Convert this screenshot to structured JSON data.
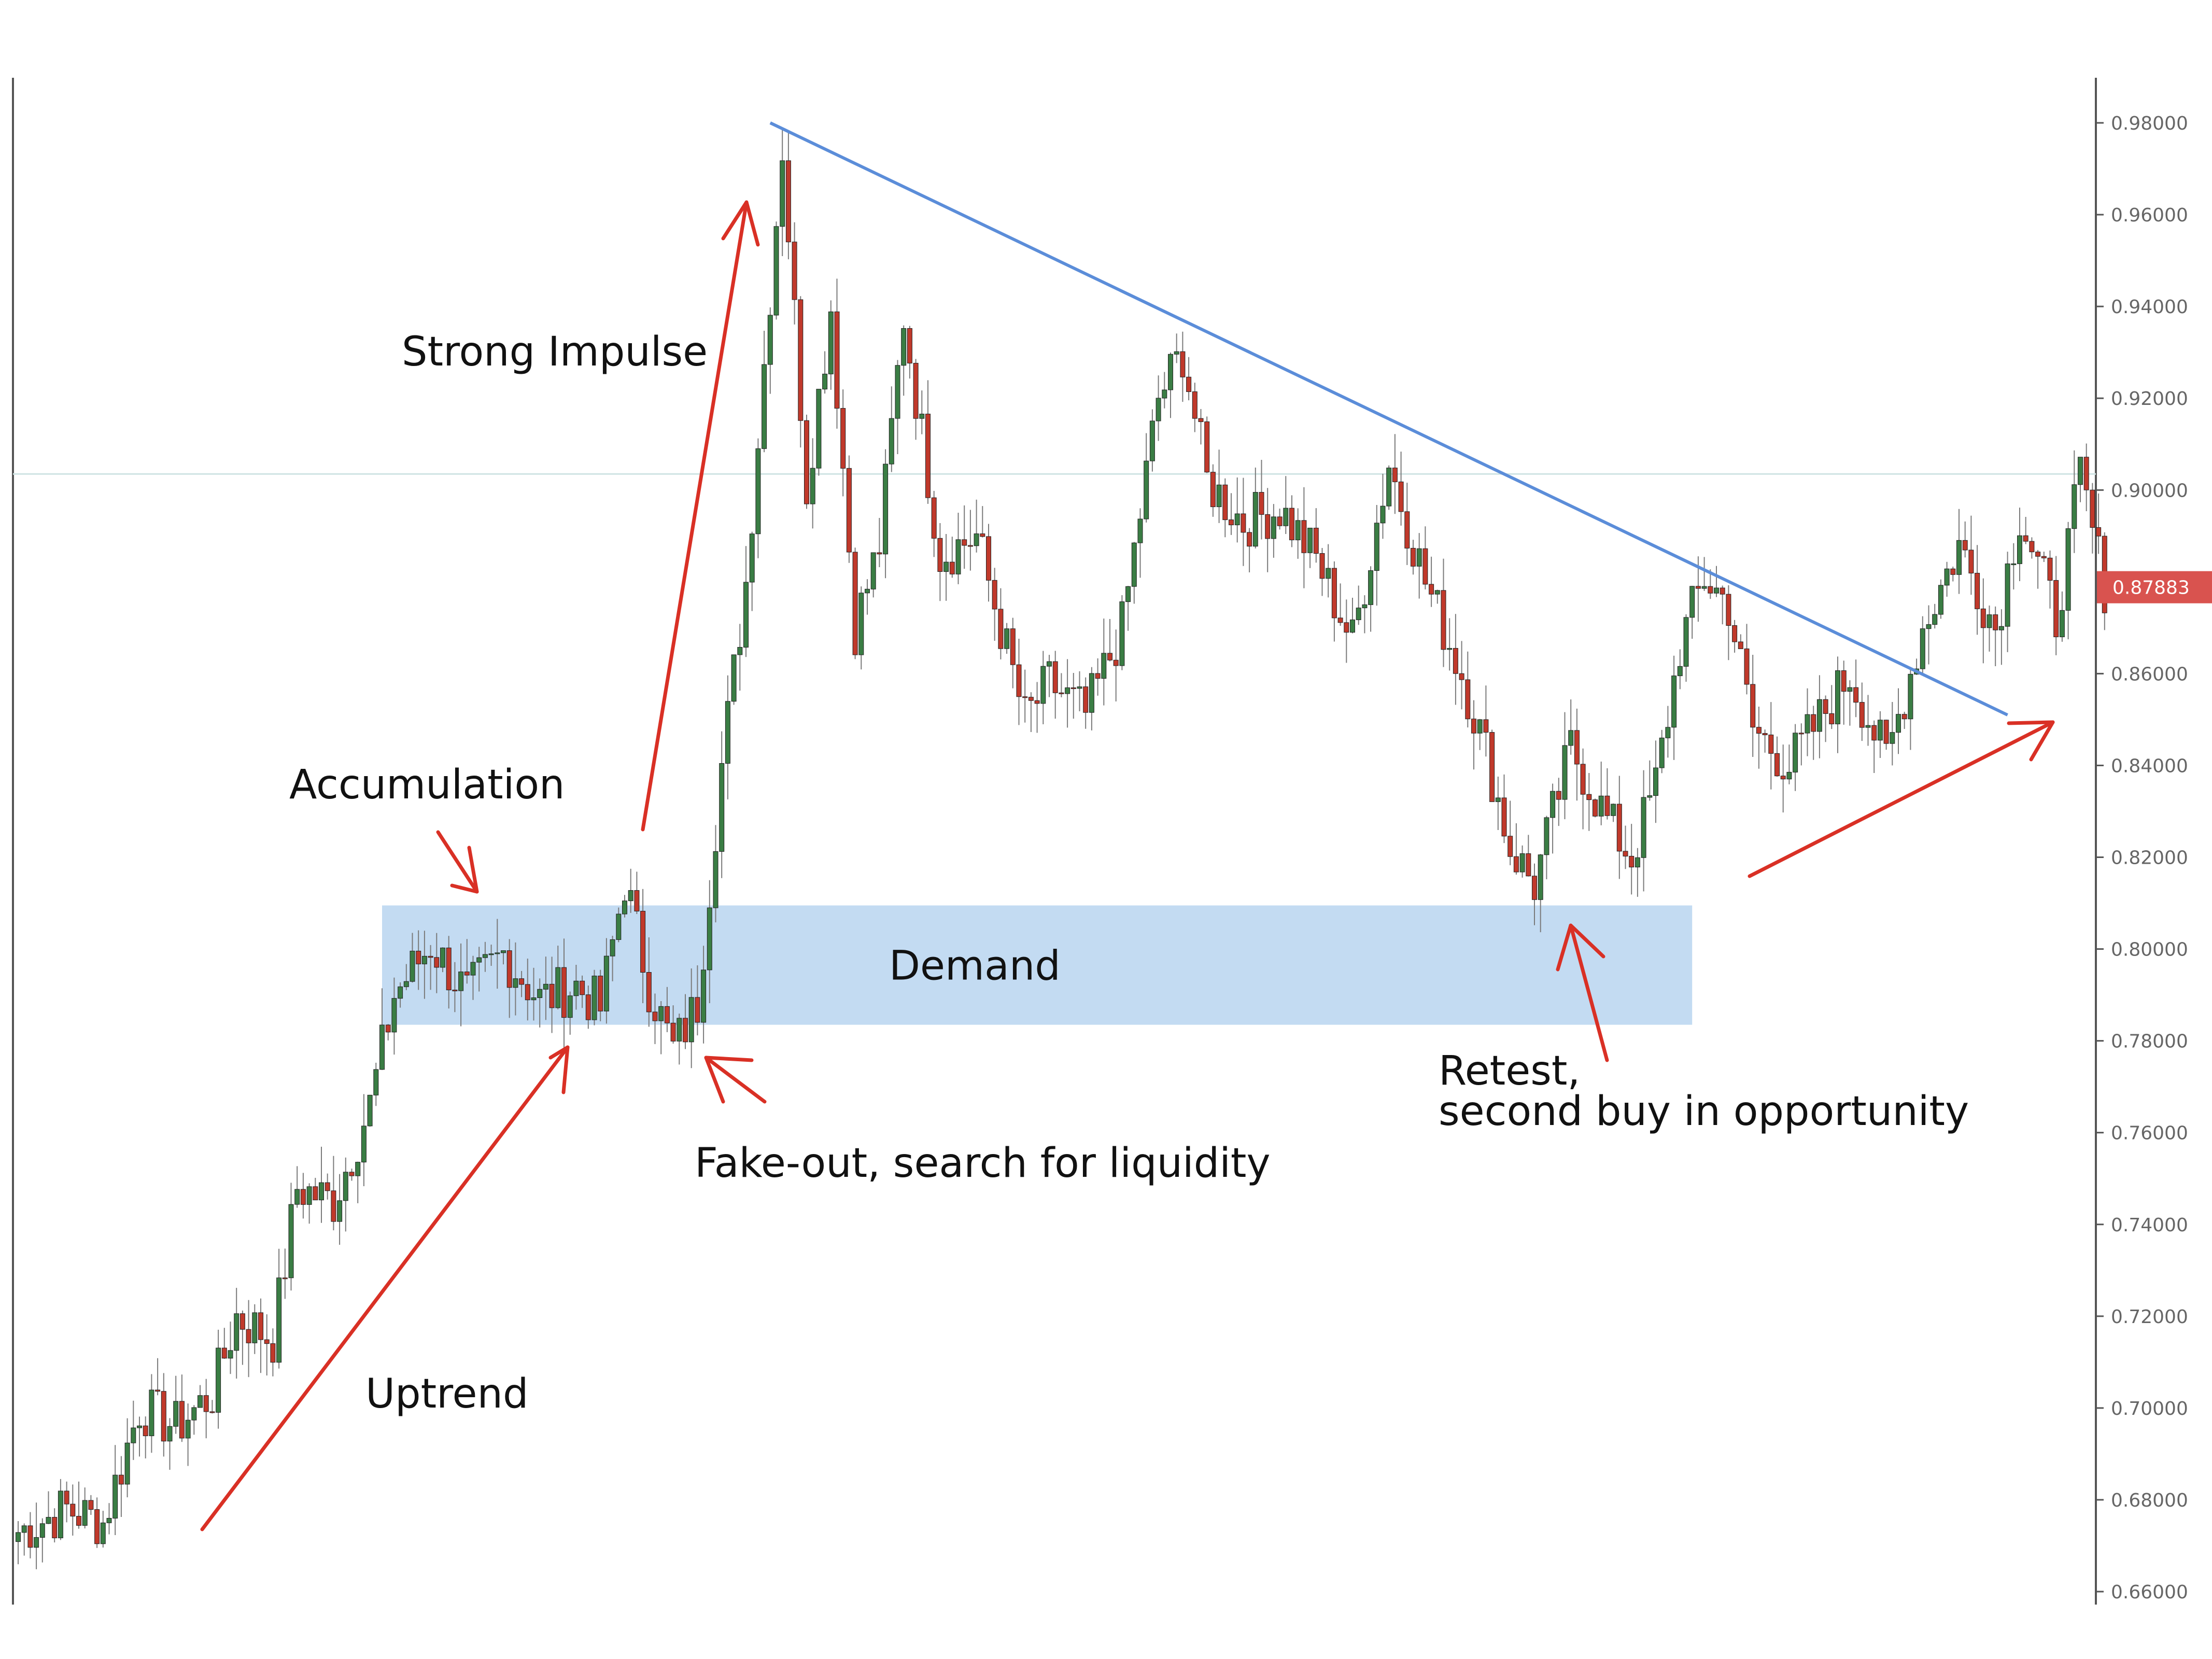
{
  "colors": {
    "bull": "#3a7d44",
    "bear": "#c0392b",
    "wick": "#7a7a7a",
    "trendline": "#5b8dd9",
    "arrow": "#d93025",
    "demand_zone": "#b9d5f0",
    "price_tag": "#d9534f",
    "axis": "#555555",
    "hline": "#cfe3e3"
  },
  "chart_data": {
    "type": "candlestick",
    "ylim": [
      0.655,
      0.99
    ],
    "y_ticks": [
      "0.98000",
      "0.96000",
      "0.94000",
      "0.92000",
      "0.90000",
      "0.88000",
      "0.86000",
      "0.84000",
      "0.82000",
      "0.80000",
      "0.78000",
      "0.76000",
      "0.74000",
      "0.72000",
      "0.70000",
      "0.68000",
      "0.66000"
    ],
    "current_price": "0.87883",
    "current_price_value": 0.87883,
    "reference_level": 0.9035,
    "demand_zone": {
      "label": "Demand",
      "low": 0.7835,
      "high": 0.8095,
      "start_bar": 60,
      "end_bar": 276
    },
    "trendline": {
      "start": {
        "bar": 124,
        "price": 0.98
      },
      "end": {
        "bar": 328,
        "price": 0.851
      }
    },
    "price_path": [
      [
        0,
        0.673
      ],
      [
        8,
        0.678
      ],
      [
        14,
        0.675
      ],
      [
        20,
        0.7
      ],
      [
        26,
        0.696
      ],
      [
        32,
        0.703
      ],
      [
        36,
        0.72
      ],
      [
        42,
        0.715
      ],
      [
        46,
        0.748
      ],
      [
        52,
        0.745
      ],
      [
        58,
        0.766
      ],
      [
        62,
        0.79
      ],
      [
        68,
        0.801
      ],
      [
        74,
        0.79
      ],
      [
        80,
        0.799
      ],
      [
        86,
        0.789
      ],
      [
        92,
        0.792
      ],
      [
        96,
        0.787
      ],
      [
        100,
        0.815
      ],
      [
        104,
        0.792
      ],
      [
        108,
        0.778
      ],
      [
        112,
        0.788
      ],
      [
        116,
        0.84
      ],
      [
        120,
        0.88
      ],
      [
        126,
        0.975
      ],
      [
        130,
        0.901
      ],
      [
        134,
        0.94
      ],
      [
        138,
        0.87
      ],
      [
        142,
        0.888
      ],
      [
        146,
        0.938
      ],
      [
        152,
        0.886
      ],
      [
        158,
        0.89
      ],
      [
        162,
        0.87
      ],
      [
        166,
        0.85
      ],
      [
        170,
        0.858
      ],
      [
        176,
        0.851
      ],
      [
        182,
        0.87
      ],
      [
        188,
        0.92
      ],
      [
        192,
        0.93
      ],
      [
        196,
        0.902
      ],
      [
        202,
        0.893
      ],
      [
        208,
        0.896
      ],
      [
        214,
        0.885
      ],
      [
        220,
        0.867
      ],
      [
        226,
        0.906
      ],
      [
        232,
        0.88
      ],
      [
        238,
        0.86
      ],
      [
        242,
        0.843
      ],
      [
        246,
        0.822
      ],
      [
        250,
        0.814
      ],
      [
        256,
        0.844
      ],
      [
        262,
        0.828
      ],
      [
        266,
        0.82
      ],
      [
        270,
        0.836
      ],
      [
        274,
        0.866
      ],
      [
        278,
        0.881
      ],
      [
        282,
        0.875
      ],
      [
        286,
        0.848
      ],
      [
        292,
        0.84
      ],
      [
        298,
        0.852
      ],
      [
        302,
        0.86
      ],
      [
        308,
        0.841
      ],
      [
        314,
        0.87
      ],
      [
        320,
        0.888
      ],
      [
        326,
        0.87
      ],
      [
        330,
        0.895
      ],
      [
        336,
        0.872
      ],
      [
        340,
        0.903
      ],
      [
        344,
        0.879
      ]
    ],
    "annotations": [
      {
        "text": "Strong Impulse",
        "id": "strong-impulse"
      },
      {
        "text": "Accumulation",
        "id": "accumulation"
      },
      {
        "text": "Demand",
        "id": "demand"
      },
      {
        "text": "Fake-out, search for liquidity",
        "id": "fake-out"
      },
      {
        "text": "Uptrend",
        "id": "uptrend"
      },
      {
        "text": "Retest,",
        "id": "retest-line1"
      },
      {
        "text": "second buy in opportunity",
        "id": "retest-line2"
      }
    ]
  }
}
